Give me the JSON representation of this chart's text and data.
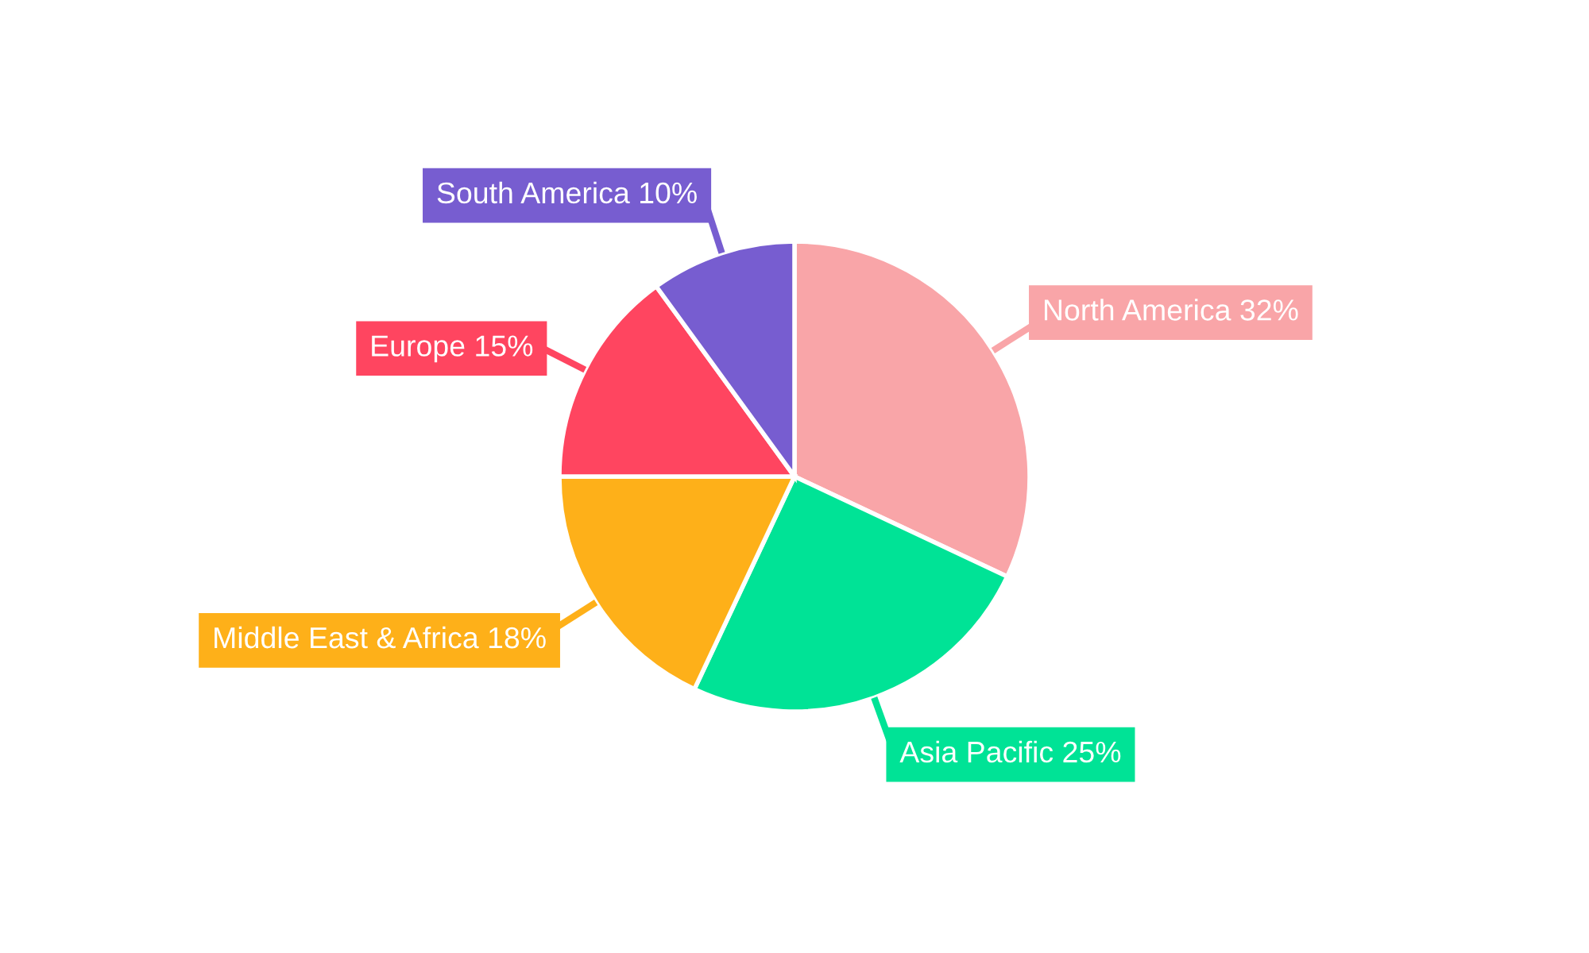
{
  "chart_data": {
    "type": "pie",
    "categories": [
      "North America",
      "Asia Pacific",
      "Middle East & Africa",
      "Europe",
      "South America"
    ],
    "values": [
      32,
      25,
      18,
      15,
      10
    ],
    "value_labels": [
      "32%",
      "25%",
      "18%",
      "15%",
      "10%"
    ],
    "colors": [
      "#f9a5a8",
      "#00e396",
      "#feb019",
      "#ff4560",
      "#775dd0"
    ],
    "legend": false
  }
}
